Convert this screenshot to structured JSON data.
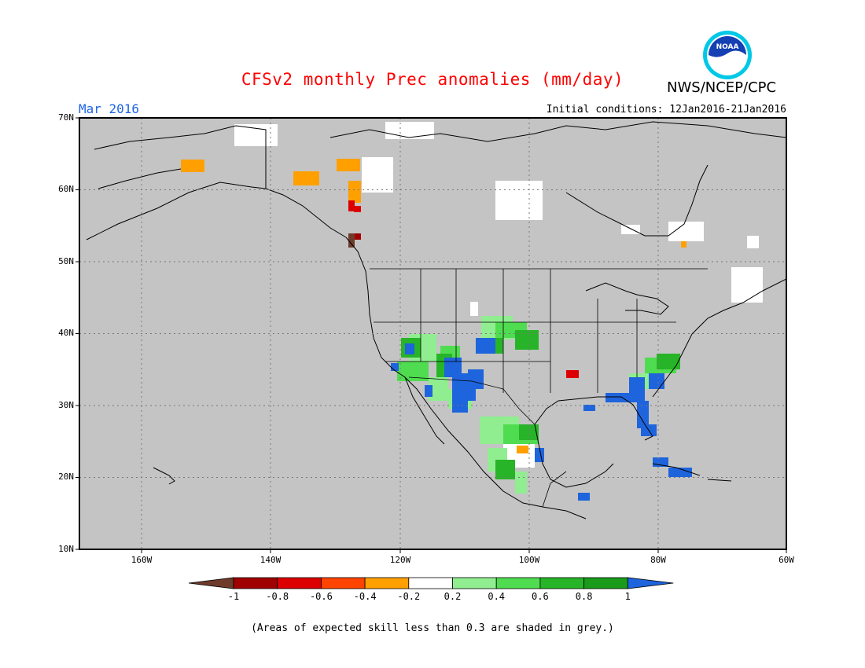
{
  "title": "CFSv2 monthly Prec anomalies (mm/day)",
  "agency": "NWS/NCEP/CPC",
  "logo_text": "NOAA",
  "month_label": "Mar 2016",
  "initial_conditions": "Initial conditions: 12Jan2016-21Jan2016",
  "lat_labels": [
    "70N",
    "60N",
    "50N",
    "40N",
    "30N",
    "20N",
    "10N"
  ],
  "lon_labels": [
    "160W",
    "140W",
    "120W",
    "100W",
    "80W",
    "60W"
  ],
  "colorbar": {
    "labels": [
      "-1",
      "-0.8",
      "-0.6",
      "-0.4",
      "-0.2",
      "0.2",
      "0.4",
      "0.6",
      "0.8",
      "1"
    ],
    "colors": [
      "#6e3b2a",
      "#a00000",
      "#dc0000",
      "#ff4400",
      "#ffa000",
      "#ffffff",
      "#90ee90",
      "#50dc50",
      "#28b428",
      "#1a9b1a",
      "#1e64dc"
    ]
  },
  "footnote": "(Areas of expected skill less than 0.3 are shaded in grey.)",
  "colors": {
    "background": "#c4c4c4",
    "title": "#ff0000",
    "month": "#1e64e6",
    "grid": "#777777"
  }
}
